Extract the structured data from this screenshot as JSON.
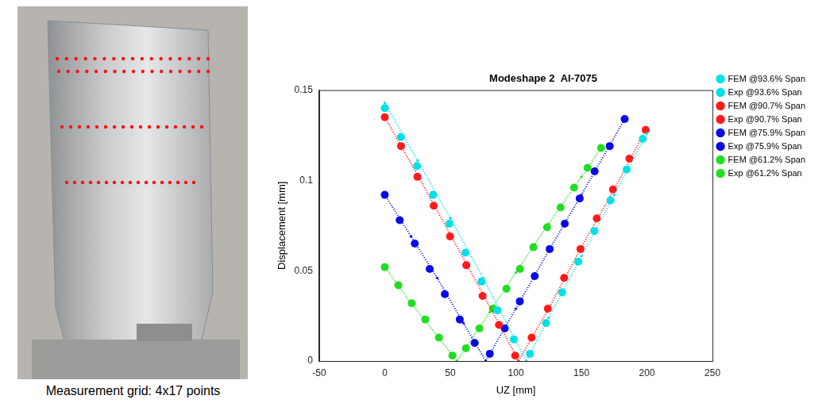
{
  "photo": {
    "caption": "Measurement grid: 4x17 points",
    "grid_rows": 4,
    "grid_columns": 17
  },
  "chart_data": {
    "type": "scatter",
    "title": "Modeshape 2  Al-7075",
    "x_label": "UZ [mm]",
    "y_label": "Displacement [mm]",
    "xlim": [
      -50,
      250
    ],
    "xticks": [
      -50,
      0,
      50,
      100,
      150,
      200,
      250
    ],
    "ylim": [
      0,
      0.15
    ],
    "yticks": [
      0,
      0.05,
      0.1,
      0.15
    ],
    "grid": false,
    "legend": "right",
    "series": [
      {
        "name": "FEM @93.6% Span",
        "color": "#00e0e8",
        "marker": "dot",
        "line_style": "dotted",
        "x": [
          0,
          25,
          50,
          75,
          100,
          108,
          125,
          150,
          175,
          200
        ],
        "values": [
          0.143,
          0.111,
          0.079,
          0.046,
          0.011,
          0.0,
          0.024,
          0.058,
          0.092,
          0.126
        ]
      },
      {
        "name": "Exp @93.6% Span",
        "color": "#00e0e8",
        "marker": "circle",
        "line_style": "none",
        "x": [
          0,
          12.3,
          24.6,
          36.9,
          49.2,
          61.5,
          73.8,
          86.1,
          98.4,
          110.7,
          123,
          135.3,
          147.6,
          159.9,
          172.2,
          184.5,
          196.8
        ],
        "values": [
          0.14,
          0.124,
          0.108,
          0.092,
          0.076,
          0.06,
          0.044,
          0.028,
          0.012,
          0.004,
          0.021,
          0.038,
          0.055,
          0.072,
          0.089,
          0.106,
          0.123
        ]
      },
      {
        "name": "FEM @90.7% Span",
        "color": "#ff1a1a",
        "marker": "dot",
        "line_style": "dotted",
        "x": [
          0,
          25,
          50,
          75,
          100,
          102,
          125,
          150,
          175,
          199
        ],
        "values": [
          0.135,
          0.103,
          0.07,
          0.037,
          0.003,
          0.0,
          0.029,
          0.063,
          0.095,
          0.128
        ]
      },
      {
        "name": "Exp @90.7% Span",
        "color": "#ff1a1a",
        "marker": "circle",
        "line_style": "none",
        "x": [
          0,
          12.4,
          24.9,
          37.3,
          49.8,
          62.2,
          74.6,
          87.1,
          99.5,
          112,
          124.4,
          136.8,
          149.3,
          161.7,
          174.1,
          186.6,
          199
        ],
        "values": [
          0.135,
          0.119,
          0.102,
          0.086,
          0.069,
          0.053,
          0.036,
          0.02,
          0.003,
          0.013,
          0.029,
          0.046,
          0.062,
          0.079,
          0.095,
          0.112,
          0.128
        ]
      },
      {
        "name": "FEM @75.9% Span",
        "color": "#0a0ae6",
        "marker": "dot",
        "line_style": "dotted",
        "x": [
          0,
          20,
          40,
          60,
          77,
          100,
          125,
          150,
          183
        ],
        "values": [
          0.092,
          0.069,
          0.046,
          0.021,
          0.0,
          0.029,
          0.061,
          0.092,
          0.134
        ]
      },
      {
        "name": "Exp @75.9% Span",
        "color": "#0a0ae6",
        "marker": "circle",
        "line_style": "none",
        "x": [
          0,
          11.4,
          22.9,
          34.3,
          45.8,
          57.2,
          68.6,
          80.1,
          91.5,
          103,
          114.4,
          125.8,
          137.3,
          148.7,
          160.1,
          171.6,
          183
        ],
        "values": [
          0.092,
          0.078,
          0.065,
          0.051,
          0.037,
          0.023,
          0.01,
          0.004,
          0.018,
          0.033,
          0.047,
          0.062,
          0.076,
          0.09,
          0.105,
          0.119,
          0.134
        ]
      },
      {
        "name": "FEM @61.2% Span",
        "color": "#22dd22",
        "marker": "dot",
        "line_style": "dotted",
        "x": [
          0,
          20,
          40,
          55,
          80,
          100,
          125,
          150,
          165
        ],
        "values": [
          0.052,
          0.032,
          0.014,
          0.0,
          0.027,
          0.049,
          0.076,
          0.102,
          0.118
        ]
      },
      {
        "name": "Exp @61.2% Span",
        "color": "#22dd22",
        "marker": "circle",
        "line_style": "none",
        "x": [
          0,
          10.3,
          20.6,
          30.9,
          41.3,
          51.6,
          61.9,
          72.2,
          82.5,
          92.8,
          103.1,
          113.4,
          123.8,
          134.1,
          144.4,
          154.7,
          165
        ],
        "values": [
          0.052,
          0.042,
          0.032,
          0.023,
          0.013,
          0.003,
          0.007,
          0.018,
          0.029,
          0.04,
          0.051,
          0.063,
          0.074,
          0.085,
          0.096,
          0.107,
          0.118
        ]
      }
    ]
  }
}
